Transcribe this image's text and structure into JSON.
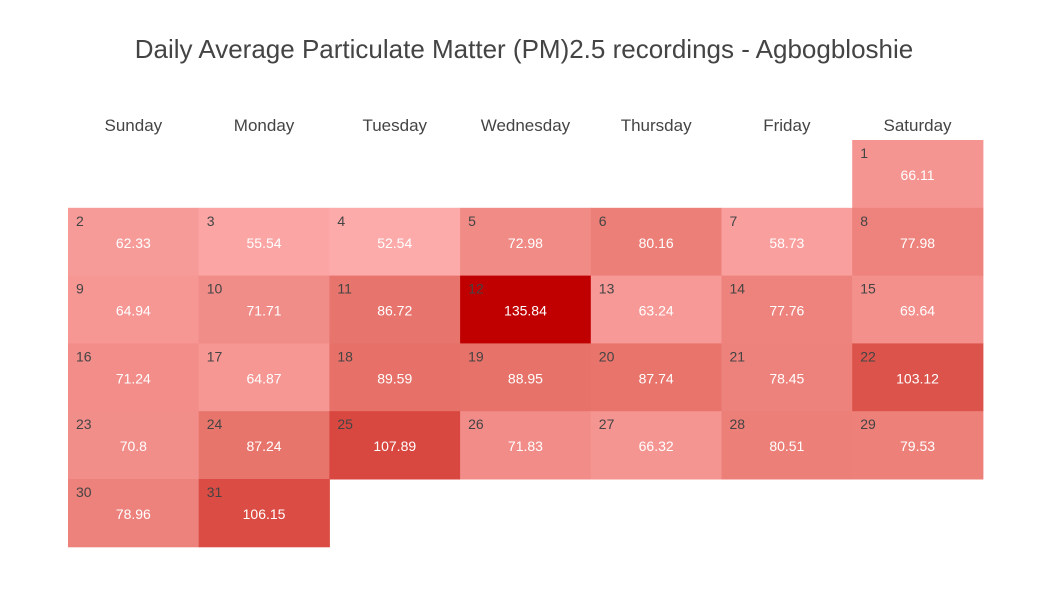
{
  "chart_data": {
    "type": "heatmap",
    "title": "Daily Average Particulate Matter (PM)2.5 recordings - Agbogbloshie",
    "weekdays": [
      "Sunday",
      "Monday",
      "Tuesday",
      "Wednesday",
      "Thursday",
      "Friday",
      "Saturday"
    ],
    "first_day_weekday_index": 6,
    "days": [
      1,
      2,
      3,
      4,
      5,
      6,
      7,
      8,
      9,
      10,
      11,
      12,
      13,
      14,
      15,
      16,
      17,
      18,
      19,
      20,
      21,
      22,
      23,
      24,
      25,
      26,
      27,
      28,
      29,
      30,
      31
    ],
    "values": [
      66.11,
      62.33,
      55.54,
      52.54,
      72.98,
      80.16,
      58.73,
      77.98,
      64.94,
      71.71,
      86.72,
      135.84,
      63.24,
      77.76,
      69.64,
      71.24,
      64.87,
      89.59,
      88.95,
      87.74,
      78.45,
      103.12,
      70.8,
      87.24,
      107.89,
      71.83,
      66.32,
      80.51,
      79.53,
      78.96,
      106.15
    ],
    "value_labels": [
      "66.11",
      "62.33",
      "55.54",
      "52.54",
      "72.98",
      "80.16",
      "58.73",
      "77.98",
      "64.94",
      "71.71",
      "86.72",
      "135.84",
      "63.24",
      "77.76",
      "69.64",
      "71.24",
      "64.87",
      "89.59",
      "88.95",
      "87.74",
      "78.45",
      "103.12",
      "70.8",
      "87.24",
      "107.89",
      "71.83",
      "66.32",
      "80.51",
      "79.53",
      "78.96",
      "106.15"
    ],
    "color_scale": {
      "low": "#fdaaaa",
      "mid": "#e46a60",
      "high": "#c00000",
      "min": 52.54,
      "max": 135.84
    },
    "grid": false
  }
}
